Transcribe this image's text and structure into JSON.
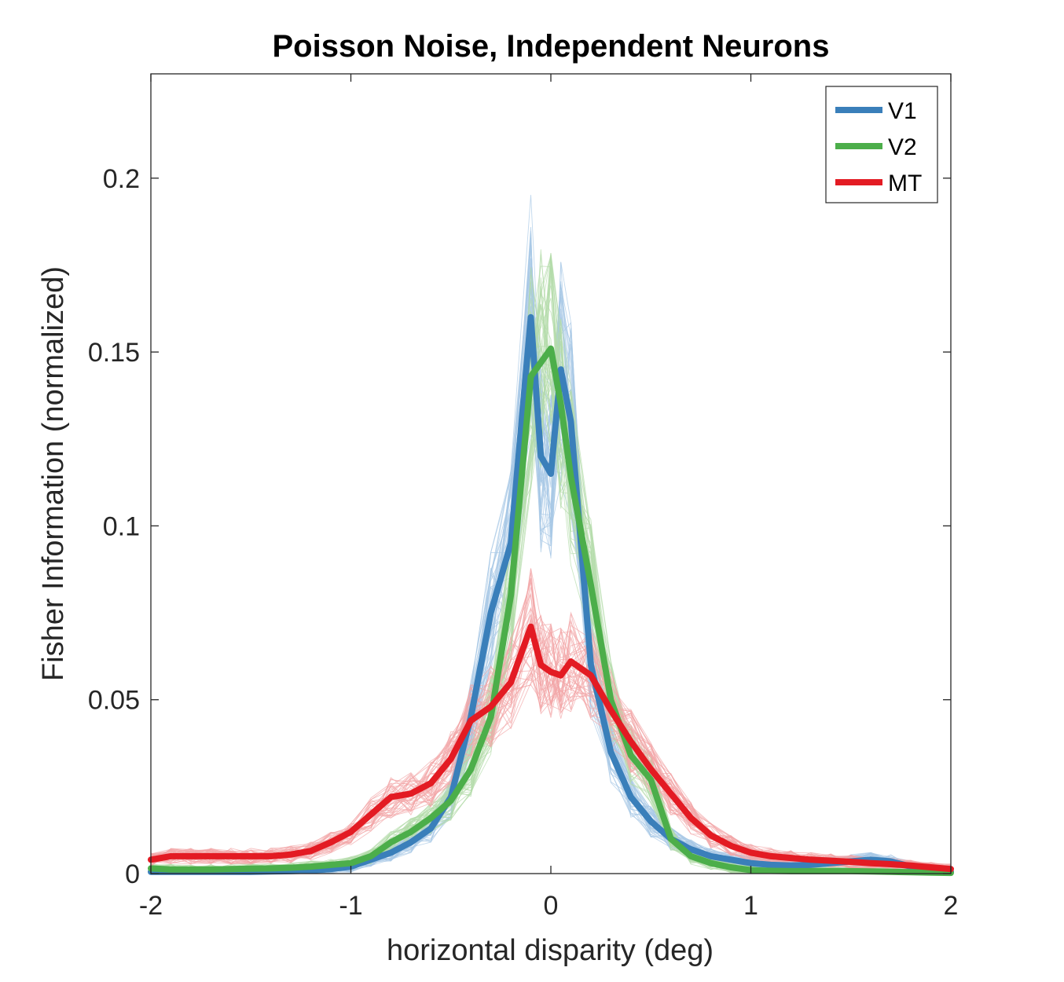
{
  "chart_data": {
    "type": "line",
    "title": "Poisson Noise, Independent Neurons",
    "xlabel": "horizontal disparity (deg)",
    "ylabel": "Fisher Information (normalized)",
    "xlim": [
      -2,
      2
    ],
    "ylim": [
      0,
      0.23
    ],
    "xticks": [
      -2,
      -1,
      0,
      1,
      2
    ],
    "xtick_labels": [
      "-2",
      "-1",
      "0",
      "1",
      "2"
    ],
    "yticks": [
      0,
      0.05,
      0.1,
      0.15,
      0.2
    ],
    "ytick_labels": [
      "0",
      "0.05",
      "0.1",
      "0.15",
      "0.2"
    ],
    "legend_position": "top-right",
    "grid": false,
    "x": [
      -2.0,
      -1.9,
      -1.8,
      -1.7,
      -1.6,
      -1.5,
      -1.4,
      -1.3,
      -1.2,
      -1.1,
      -1.0,
      -0.9,
      -0.8,
      -0.7,
      -0.6,
      -0.5,
      -0.4,
      -0.3,
      -0.2,
      -0.1,
      -0.05,
      0.0,
      0.05,
      0.1,
      0.2,
      0.3,
      0.4,
      0.5,
      0.6,
      0.7,
      0.8,
      0.9,
      1.0,
      1.1,
      1.2,
      1.3,
      1.4,
      1.5,
      1.6,
      1.7,
      1.8,
      1.9,
      2.0
    ],
    "series": [
      {
        "name": "V1",
        "color": "#3a7fba",
        "light_color": "#a7c8e6",
        "values": [
          0.0005,
          0.0005,
          0.0005,
          0.0005,
          0.0005,
          0.0005,
          0.0006,
          0.0007,
          0.0009,
          0.0013,
          0.002,
          0.004,
          0.006,
          0.009,
          0.013,
          0.022,
          0.045,
          0.075,
          0.095,
          0.16,
          0.12,
          0.115,
          0.145,
          0.13,
          0.06,
          0.035,
          0.022,
          0.015,
          0.01,
          0.007,
          0.005,
          0.004,
          0.003,
          0.0025,
          0.0023,
          0.0025,
          0.003,
          0.0035,
          0.004,
          0.0035,
          0.002,
          0.001,
          0.0005
        ]
      },
      {
        "name": "V2",
        "color": "#4cae4a",
        "light_color": "#b3dba9",
        "values": [
          0.0015,
          0.0012,
          0.0012,
          0.0012,
          0.0013,
          0.0014,
          0.0015,
          0.0017,
          0.002,
          0.0025,
          0.003,
          0.005,
          0.009,
          0.012,
          0.016,
          0.021,
          0.03,
          0.045,
          0.08,
          0.143,
          0.147,
          0.151,
          0.135,
          0.114,
          0.083,
          0.05,
          0.034,
          0.027,
          0.01,
          0.005,
          0.003,
          0.0018,
          0.001,
          0.0008,
          0.0007,
          0.0007,
          0.0007,
          0.0007,
          0.0006,
          0.0005,
          0.0004,
          0.0003,
          0.0002
        ]
      },
      {
        "name": "MT",
        "color": "#e31b23",
        "light_color": "#f2a5a7",
        "values": [
          0.004,
          0.005,
          0.005,
          0.005,
          0.005,
          0.005,
          0.005,
          0.0055,
          0.0065,
          0.009,
          0.012,
          0.017,
          0.022,
          0.023,
          0.026,
          0.033,
          0.044,
          0.048,
          0.055,
          0.071,
          0.06,
          0.058,
          0.057,
          0.061,
          0.057,
          0.047,
          0.038,
          0.03,
          0.023,
          0.016,
          0.011,
          0.008,
          0.006,
          0.005,
          0.0045,
          0.004,
          0.0037,
          0.0034,
          0.003,
          0.0027,
          0.0023,
          0.0018,
          0.0013
        ]
      }
    ]
  }
}
